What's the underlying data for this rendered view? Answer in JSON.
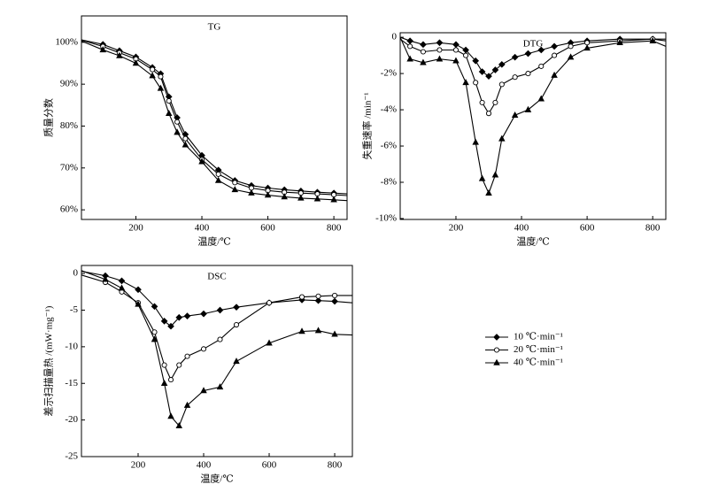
{
  "chart_data": [
    {
      "type": "line",
      "title": "TG",
      "xlabel": "温度/℃",
      "ylabel": "质量分数",
      "xlim": [
        35,
        840
      ],
      "ylim": [
        57.7,
        106.3
      ],
      "xticks": [
        200,
        400,
        600,
        800
      ],
      "yticks": [
        {
          "value": 60,
          "label": "60%"
        },
        {
          "value": 70,
          "label": "70%"
        },
        {
          "value": 80,
          "label": "80%"
        },
        {
          "value": 90,
          "label": "90%"
        },
        {
          "value": 100,
          "label": "100%"
        }
      ],
      "x": [
        35,
        100,
        150,
        200,
        250,
        275,
        300,
        325,
        350,
        400,
        450,
        500,
        550,
        600,
        650,
        700,
        750,
        800,
        840
      ],
      "series": [
        {
          "name": "10 ℃·min⁻¹",
          "color": "#000000",
          "marker": "diamond",
          "values": [
            100.6,
            99.5,
            98,
            96.5,
            94,
            92.5,
            87,
            82,
            78,
            73,
            69.5,
            67,
            65.8,
            65.2,
            64.8,
            64.5,
            64.2,
            64,
            63.8
          ]
        },
        {
          "name": "20 ℃·min⁻¹",
          "color": "#000000",
          "marker": "circle",
          "values": [
            100.5,
            99,
            97.5,
            96,
            93.5,
            91.8,
            86,
            81,
            77,
            72,
            68.5,
            66.5,
            65.2,
            64.6,
            64.2,
            64,
            63.8,
            63.6,
            63.4
          ]
        },
        {
          "name": "40 ℃·min⁻¹",
          "color": "#000000",
          "marker": "triangle",
          "values": [
            100.3,
            98.2,
            96.8,
            95,
            92,
            89,
            83,
            78.5,
            75.5,
            71.5,
            67,
            64.8,
            64,
            63.5,
            63.1,
            62.8,
            62.6,
            62.4,
            62.2
          ]
        }
      ]
    },
    {
      "type": "line",
      "title": "DTG",
      "xlabel": "温度/℃",
      "ylabel": "失重速率 /min⁻¹",
      "xlim": [
        30,
        840
      ],
      "ylim": [
        -10.05,
        0.25
      ],
      "xticks": [
        200,
        400,
        600,
        800
      ],
      "yticks": [
        {
          "value": -10,
          "label": "-10%"
        },
        {
          "value": -8,
          "label": "-8%"
        },
        {
          "value": -6,
          "label": "-6%"
        },
        {
          "value": -4,
          "label": "-4%"
        },
        {
          "value": -2,
          "label": "-2%"
        },
        0
      ],
      "x": [
        30,
        60,
        100,
        150,
        200,
        230,
        260,
        280,
        300,
        320,
        340,
        380,
        420,
        460,
        500,
        550,
        600,
        700,
        800,
        840
      ],
      "series": [
        {
          "color": "#000000",
          "marker": "diamond",
          "values": [
            0,
            -0.2,
            -0.4,
            -0.3,
            -0.4,
            -0.7,
            -1.3,
            -1.9,
            -2.15,
            -1.8,
            -1.5,
            -1.1,
            -0.9,
            -0.7,
            -0.5,
            -0.3,
            -0.2,
            -0.1,
            -0.1,
            -0.2
          ]
        },
        {
          "color": "#000000",
          "marker": "circle",
          "values": [
            -0.1,
            -0.5,
            -0.8,
            -0.7,
            -0.7,
            -1,
            -2.5,
            -3.6,
            -4.2,
            -3.6,
            -2.6,
            -2.2,
            -2,
            -1.6,
            -1,
            -0.5,
            -0.3,
            -0.2,
            -0.1,
            -0.1
          ]
        },
        {
          "color": "#000000",
          "marker": "triangle",
          "values": [
            0,
            -1.2,
            -1.4,
            -1.2,
            -1.3,
            -2.5,
            -5.8,
            -7.8,
            -8.6,
            -7.6,
            -5.6,
            -4.3,
            -4,
            -3.4,
            -2.1,
            -1.1,
            -0.6,
            -0.3,
            -0.2,
            -0.5
          ]
        }
      ]
    },
    {
      "type": "line",
      "title": "DSC",
      "xlabel": "温度/℃",
      "ylabel": "差示扫描量热 /(mW·mg⁻¹)",
      "xlim": [
        27,
        854
      ],
      "ylim": [
        -25,
        1.1
      ],
      "xticks": [
        200,
        400,
        600,
        800
      ],
      "yticks": [
        -25,
        -20,
        -15,
        -10,
        -5,
        0
      ],
      "x": [
        27,
        100,
        150,
        200,
        250,
        280,
        300,
        325,
        350,
        400,
        450,
        500,
        600,
        700,
        750,
        800,
        854
      ],
      "series": [
        {
          "color": "#000000",
          "marker": "diamond",
          "values": [
            0.3,
            -0.3,
            -1,
            -2.2,
            -4.5,
            -6.5,
            -7.2,
            -6,
            -5.8,
            -5.5,
            -5,
            -4.6,
            -4,
            -3.6,
            -3.7,
            -3.8,
            -4
          ]
        },
        {
          "color": "#000000",
          "marker": "circle",
          "values": [
            -0.2,
            -1.2,
            -2.5,
            -4,
            -8,
            -12.5,
            -14.5,
            -12.5,
            -11.3,
            -10.3,
            -9,
            -7,
            -4,
            -3.2,
            -3.1,
            -3,
            -3
          ]
        },
        {
          "color": "#000000",
          "marker": "triangle",
          "values": [
            0.4,
            -0.8,
            -2,
            -4.2,
            -9,
            -15,
            -19.5,
            -20.8,
            -18,
            -16,
            -15.5,
            -12,
            -9.5,
            -7.9,
            -7.8,
            -8.3,
            -8.4
          ]
        }
      ]
    }
  ]
}
